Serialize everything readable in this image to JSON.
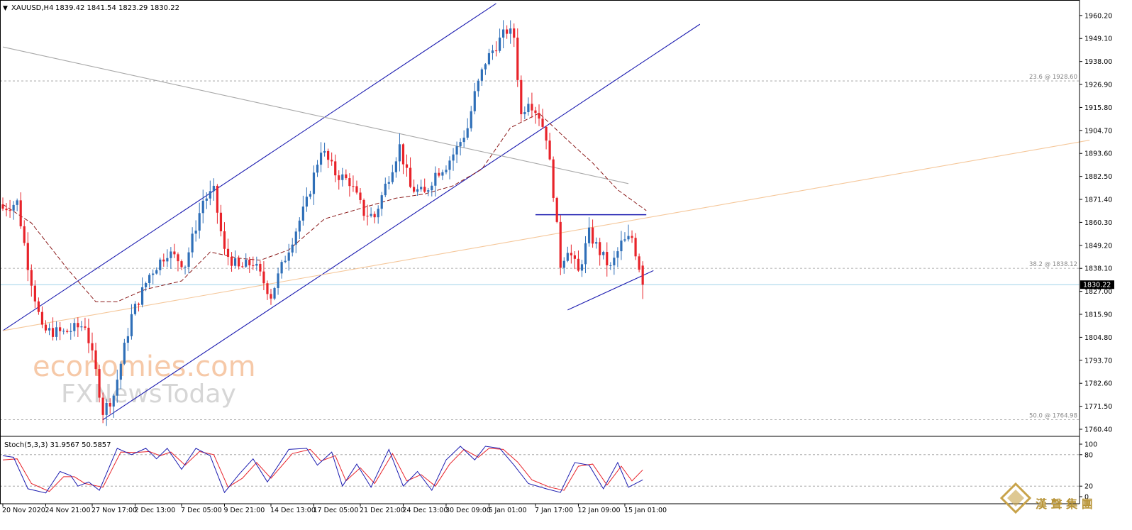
{
  "header": {
    "symbol": "XAUUSD,H4",
    "ohlc": "1839.42 1841.54 1823.29 1830.22"
  },
  "colors": {
    "bull_candle": "#2f6fb8",
    "bear_candle": "#e8232a",
    "channel_line": "#1c1cb0",
    "trend_gray": "#a8a8a8",
    "trend_orange": "#f5c79a",
    "ma_line": "#8b1a1a",
    "stoch_main": "#1c1cb0",
    "stoch_signal": "#e8232a",
    "price_marker": "#000000",
    "grid_dashed": "#9a9a9a",
    "current_price_line": "#9fd3e8",
    "watermark_orange": "#f6c9a8",
    "watermark_gray": "#d6d6d6",
    "logo_gold": "#c8a34a"
  },
  "price_axis": {
    "ticks": [
      "1960.20",
      "1949.10",
      "1938.00",
      "1926.90",
      "1915.80",
      "1904.70",
      "1893.60",
      "1882.50",
      "1871.40",
      "1860.30",
      "1849.20",
      "1838.10",
      "1827.00",
      "1815.90",
      "1804.80",
      "1793.70",
      "1782.60",
      "1771.50",
      "1760.40"
    ],
    "current_price": "1830.22"
  },
  "fib_levels": [
    {
      "label": "23.6 @ 1928.60",
      "price": 1928.6
    },
    {
      "label": "38.2 @ 1838.12",
      "price": 1838.12
    },
    {
      "label": "50.0 @ 1764.98",
      "price": 1764.98
    }
  ],
  "time_axis": {
    "ticks": [
      "20 Nov 2020",
      "24 Nov 21:00",
      "27 Nov 17:00",
      "2 Dec 13:00",
      "7 Dec 05:00",
      "9 Dec 21:00",
      "14 Dec 13:00",
      "17 Dec 05:00",
      "21 Dec 21:00",
      "24 Dec 13:00",
      "30 Dec 09:00",
      "5 Jan 01:00",
      "7 Jan 17:00",
      "12 Jan 09:00",
      "15 Jan 01:00"
    ]
  },
  "stochastic": {
    "label": "Stoch(5,3,3) 31.9567 50.5857",
    "axis_ticks": [
      "100",
      "80",
      "20",
      "0"
    ],
    "levels": [
      80,
      20
    ]
  },
  "watermark": {
    "line1": "economies.com",
    "line2": "FXNewsToday"
  },
  "logo": {
    "text": "漢 聲 集 團"
  },
  "chart_data": {
    "type": "candlestick",
    "symbol": "XAUUSD",
    "timeframe": "H4",
    "last_bar": {
      "open": 1839.42,
      "high": 1841.54,
      "low": 1823.29,
      "close": 1830.22
    },
    "ylim": [
      1758,
      1967
    ],
    "close_path": [
      {
        "bar": 0,
        "price": 1867
      },
      {
        "bar": 4,
        "price": 1870
      },
      {
        "bar": 7,
        "price": 1840
      },
      {
        "bar": 11,
        "price": 1808
      },
      {
        "bar": 17,
        "price": 1807
      },
      {
        "bar": 23,
        "price": 1811
      },
      {
        "bar": 26,
        "price": 1788
      },
      {
        "bar": 28,
        "price": 1769
      },
      {
        "bar": 31,
        "price": 1777
      },
      {
        "bar": 36,
        "price": 1815
      },
      {
        "bar": 41,
        "price": 1835
      },
      {
        "bar": 46,
        "price": 1846
      },
      {
        "bar": 51,
        "price": 1840
      },
      {
        "bar": 56,
        "price": 1871
      },
      {
        "bar": 59,
        "price": 1875
      },
      {
        "bar": 62,
        "price": 1846
      },
      {
        "bar": 66,
        "price": 1838
      },
      {
        "bar": 70,
        "price": 1841
      },
      {
        "bar": 75,
        "price": 1825
      },
      {
        "bar": 80,
        "price": 1848
      },
      {
        "bar": 85,
        "price": 1870
      },
      {
        "bar": 89,
        "price": 1896
      },
      {
        "bar": 93,
        "price": 1884
      },
      {
        "bar": 97,
        "price": 1880
      },
      {
        "bar": 101,
        "price": 1865
      },
      {
        "bar": 104,
        "price": 1863
      },
      {
        "bar": 107,
        "price": 1878
      },
      {
        "bar": 111,
        "price": 1897
      },
      {
        "bar": 114,
        "price": 1877
      },
      {
        "bar": 118,
        "price": 1874
      },
      {
        "bar": 121,
        "price": 1884
      },
      {
        "bar": 124,
        "price": 1888
      },
      {
        "bar": 127,
        "price": 1896
      },
      {
        "bar": 130,
        "price": 1906
      },
      {
        "bar": 132,
        "price": 1922
      },
      {
        "bar": 135,
        "price": 1938
      },
      {
        "bar": 138,
        "price": 1946
      },
      {
        "bar": 141,
        "price": 1953
      },
      {
        "bar": 143,
        "price": 1950
      },
      {
        "bar": 145,
        "price": 1912
      },
      {
        "bar": 147,
        "price": 1920
      },
      {
        "bar": 150,
        "price": 1912
      },
      {
        "bar": 152,
        "price": 1902
      },
      {
        "bar": 154,
        "price": 1875
      },
      {
        "bar": 156,
        "price": 1840
      },
      {
        "bar": 158,
        "price": 1848
      },
      {
        "bar": 161,
        "price": 1836
      },
      {
        "bar": 164,
        "price": 1855
      },
      {
        "bar": 167,
        "price": 1846
      },
      {
        "bar": 170,
        "price": 1838
      },
      {
        "bar": 173,
        "price": 1850
      },
      {
        "bar": 176,
        "price": 1853
      },
      {
        "bar": 178,
        "price": 1839
      },
      {
        "bar": 179,
        "price": 1830
      }
    ],
    "moving_average": [
      {
        "bar": 0,
        "price": 1869
      },
      {
        "bar": 8,
        "price": 1860
      },
      {
        "bar": 18,
        "price": 1838
      },
      {
        "bar": 26,
        "price": 1822
      },
      {
        "bar": 32,
        "price": 1822
      },
      {
        "bar": 40,
        "price": 1828
      },
      {
        "bar": 50,
        "price": 1832
      },
      {
        "bar": 58,
        "price": 1846
      },
      {
        "bar": 66,
        "price": 1843
      },
      {
        "bar": 72,
        "price": 1842
      },
      {
        "bar": 80,
        "price": 1847
      },
      {
        "bar": 90,
        "price": 1862
      },
      {
        "bar": 100,
        "price": 1867
      },
      {
        "bar": 110,
        "price": 1872
      },
      {
        "bar": 118,
        "price": 1874
      },
      {
        "bar": 126,
        "price": 1878
      },
      {
        "bar": 134,
        "price": 1886
      },
      {
        "bar": 142,
        "price": 1906
      },
      {
        "bar": 150,
        "price": 1913
      },
      {
        "bar": 158,
        "price": 1900
      },
      {
        "bar": 165,
        "price": 1889
      },
      {
        "bar": 172,
        "price": 1876
      },
      {
        "bar": 180,
        "price": 1866
      }
    ],
    "trendlines": [
      {
        "name": "channel-upper",
        "from": {
          "bar": 0,
          "price": 1808
        },
        "to": {
          "bar": 138,
          "price": 1966
        }
      },
      {
        "name": "channel-lower",
        "from": {
          "bar": 28,
          "price": 1765
        },
        "to": {
          "bar": 195,
          "price": 1956
        }
      },
      {
        "name": "gray-descending",
        "from": {
          "bar": 0,
          "price": 1945
        },
        "to": {
          "bar": 175,
          "price": 1879
        }
      },
      {
        "name": "orange-rising",
        "from": {
          "bar": 0,
          "price": 1808
        },
        "to": {
          "bar": 304,
          "price": 1900
        }
      },
      {
        "name": "resistance-horizontal",
        "from": {
          "bar": 149,
          "price": 1864
        },
        "to": {
          "bar": 180,
          "price": 1864
        }
      },
      {
        "name": "support-rising",
        "from": {
          "bar": 158,
          "price": 1818
        },
        "to": {
          "bar": 182,
          "price": 1837
        }
      }
    ],
    "stochastic_k": [
      {
        "bar": 0,
        "value": 78
      },
      {
        "bar": 3,
        "value": 75
      },
      {
        "bar": 7,
        "value": 15
      },
      {
        "bar": 12,
        "value": 7
      },
      {
        "bar": 16,
        "value": 48
      },
      {
        "bar": 19,
        "value": 40
      },
      {
        "bar": 21,
        "value": 20
      },
      {
        "bar": 24,
        "value": 28
      },
      {
        "bar": 27,
        "value": 12
      },
      {
        "bar": 32,
        "value": 92
      },
      {
        "bar": 36,
        "value": 80
      },
      {
        "bar": 40,
        "value": 92
      },
      {
        "bar": 43,
        "value": 72
      },
      {
        "bar": 46,
        "value": 92
      },
      {
        "bar": 50,
        "value": 52
      },
      {
        "bar": 54,
        "value": 92
      },
      {
        "bar": 58,
        "value": 78
      },
      {
        "bar": 62,
        "value": 8
      },
      {
        "bar": 66,
        "value": 42
      },
      {
        "bar": 70,
        "value": 72
      },
      {
        "bar": 74,
        "value": 28
      },
      {
        "bar": 80,
        "value": 90
      },
      {
        "bar": 85,
        "value": 92
      },
      {
        "bar": 88,
        "value": 60
      },
      {
        "bar": 92,
        "value": 85
      },
      {
        "bar": 95,
        "value": 20
      },
      {
        "bar": 99,
        "value": 62
      },
      {
        "bar": 103,
        "value": 18
      },
      {
        "bar": 108,
        "value": 90
      },
      {
        "bar": 112,
        "value": 20
      },
      {
        "bar": 116,
        "value": 48
      },
      {
        "bar": 120,
        "value": 12
      },
      {
        "bar": 124,
        "value": 70
      },
      {
        "bar": 128,
        "value": 96
      },
      {
        "bar": 132,
        "value": 70
      },
      {
        "bar": 135,
        "value": 96
      },
      {
        "bar": 139,
        "value": 92
      },
      {
        "bar": 143,
        "value": 60
      },
      {
        "bar": 147,
        "value": 25
      },
      {
        "bar": 152,
        "value": 15
      },
      {
        "bar": 156,
        "value": 8
      },
      {
        "bar": 160,
        "value": 65
      },
      {
        "bar": 164,
        "value": 60
      },
      {
        "bar": 168,
        "value": 15
      },
      {
        "bar": 172,
        "value": 65
      },
      {
        "bar": 175,
        "value": 18
      },
      {
        "bar": 179,
        "value": 32
      }
    ],
    "stochastic_d": [
      {
        "bar": 0,
        "value": 70
      },
      {
        "bar": 4,
        "value": 72
      },
      {
        "bar": 8,
        "value": 25
      },
      {
        "bar": 13,
        "value": 10
      },
      {
        "bar": 17,
        "value": 38
      },
      {
        "bar": 20,
        "value": 38
      },
      {
        "bar": 23,
        "value": 25
      },
      {
        "bar": 28,
        "value": 18
      },
      {
        "bar": 33,
        "value": 85
      },
      {
        "bar": 37,
        "value": 84
      },
      {
        "bar": 41,
        "value": 86
      },
      {
        "bar": 44,
        "value": 78
      },
      {
        "bar": 47,
        "value": 85
      },
      {
        "bar": 51,
        "value": 60
      },
      {
        "bar": 55,
        "value": 86
      },
      {
        "bar": 59,
        "value": 80
      },
      {
        "bar": 63,
        "value": 18
      },
      {
        "bar": 67,
        "value": 35
      },
      {
        "bar": 71,
        "value": 65
      },
      {
        "bar": 75,
        "value": 35
      },
      {
        "bar": 81,
        "value": 82
      },
      {
        "bar": 86,
        "value": 90
      },
      {
        "bar": 89,
        "value": 68
      },
      {
        "bar": 93,
        "value": 78
      },
      {
        "bar": 96,
        "value": 30
      },
      {
        "bar": 100,
        "value": 55
      },
      {
        "bar": 104,
        "value": 25
      },
      {
        "bar": 109,
        "value": 82
      },
      {
        "bar": 113,
        "value": 30
      },
      {
        "bar": 117,
        "value": 42
      },
      {
        "bar": 121,
        "value": 20
      },
      {
        "bar": 125,
        "value": 62
      },
      {
        "bar": 129,
        "value": 90
      },
      {
        "bar": 133,
        "value": 75
      },
      {
        "bar": 136,
        "value": 92
      },
      {
        "bar": 140,
        "value": 90
      },
      {
        "bar": 144,
        "value": 66
      },
      {
        "bar": 148,
        "value": 32
      },
      {
        "bar": 153,
        "value": 18
      },
      {
        "bar": 157,
        "value": 12
      },
      {
        "bar": 161,
        "value": 58
      },
      {
        "bar": 165,
        "value": 62
      },
      {
        "bar": 169,
        "value": 22
      },
      {
        "bar": 173,
        "value": 58
      },
      {
        "bar": 176,
        "value": 30
      },
      {
        "bar": 179,
        "value": 51
      }
    ],
    "xlabel": "",
    "ylabel": "",
    "grid": false
  }
}
